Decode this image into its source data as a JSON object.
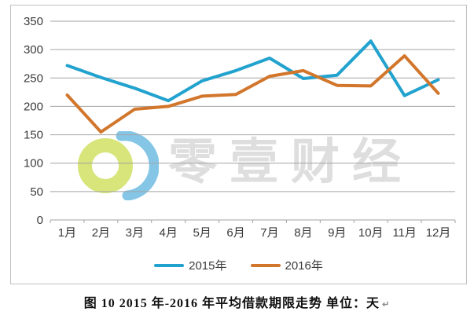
{
  "watermark": {
    "text": "零壹财经",
    "logo_icon": "zero-one-finance-logo",
    "logo_colors": {
      "ring": "#cbdd4f",
      "crescent": "#5db4de",
      "text": "#dedede"
    }
  },
  "caption": {
    "text": "图 10  2015 年-2016 年平均借款期限走势 单位：天",
    "return_mark": "↵"
  },
  "chart_data": {
    "type": "line",
    "title": "图 10  2015 年-2016 年平均借款期限走势 单位：天",
    "xlabel": "",
    "ylabel": "",
    "unit": "天",
    "categories": [
      "1月",
      "2月",
      "3月",
      "4月",
      "5月",
      "6月",
      "7月",
      "8月",
      "9月",
      "10月",
      "11月",
      "12月"
    ],
    "series": [
      {
        "name": "2015年",
        "color": "#22a2ce",
        "values": [
          272,
          251,
          232,
          210,
          245,
          263,
          285,
          249,
          255,
          315,
          219,
          247
        ]
      },
      {
        "name": "2016年",
        "color": "#d2762c",
        "values": [
          220,
          155,
          195,
          200,
          218,
          221,
          253,
          263,
          237,
          236,
          289,
          223
        ]
      }
    ],
    "ylim": [
      0,
      350
    ],
    "ytick_step": 50,
    "yticks": [
      0,
      50,
      100,
      150,
      200,
      250,
      300,
      350
    ],
    "grid": "horizontal",
    "legend_position": "bottom",
    "style": {
      "gridline_color": "#a3a3a3",
      "axis_label_color": "#3a3a3a",
      "border_color": "#bfbfbf",
      "line_width": 4
    }
  }
}
